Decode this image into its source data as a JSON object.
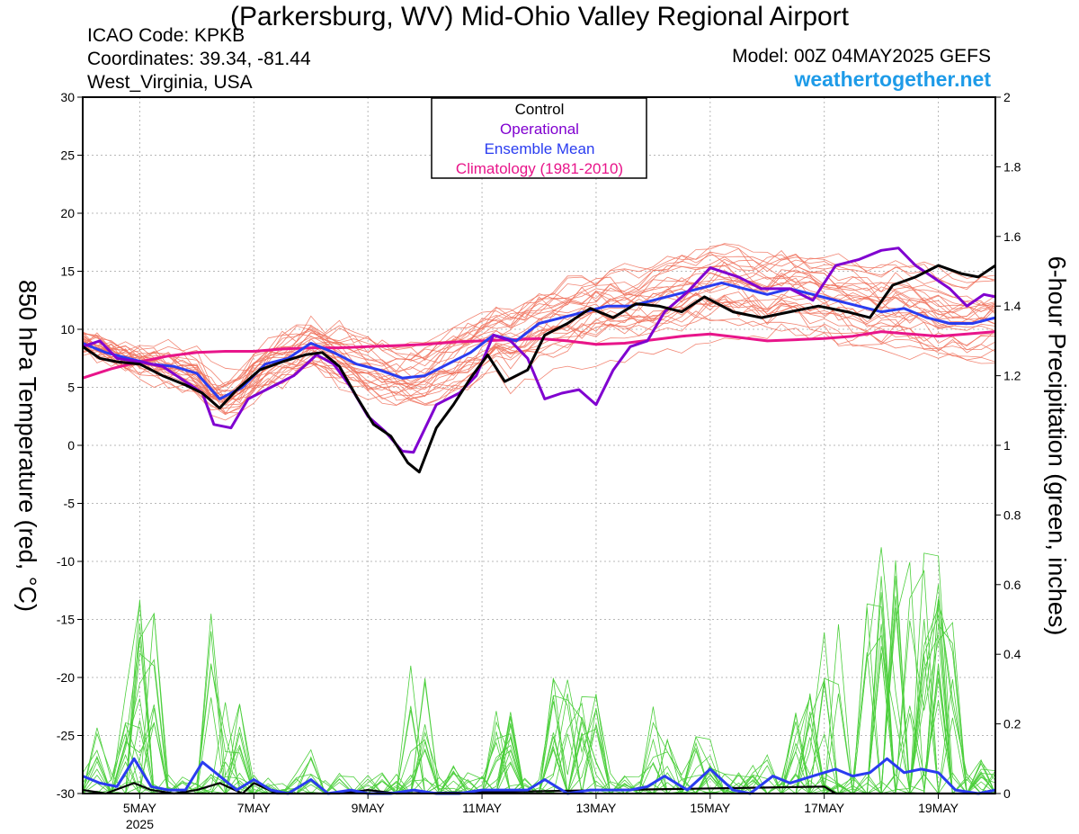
{
  "header": {
    "title": "(Parkersburg, WV) Mid-Ohio Valley Regional Airport",
    "icao": "ICAO Code: KPKB",
    "coordinates": "Coordinates: 39.34, -81.44",
    "region": "West_Virginia, USA",
    "model": "Model: 00Z 04MAY2025 GEFS",
    "site": "weathertogether.net"
  },
  "colors": {
    "control": "#000000",
    "operational": "#8000d0",
    "ensemble_mean": "#2a3cf0",
    "climatology": "#e8158a",
    "members_temp": "#f0705a",
    "members_precip": "#4ccf3c",
    "site": "#1e9be8"
  },
  "chart_data": {
    "type": "line",
    "ylabel_left": "850 hPa Temperature (red, °C)",
    "ylabel_right": "6-hour Precipitation (green, inches)",
    "ylim_left": [
      -30,
      30
    ],
    "ylim_right": [
      0,
      2
    ],
    "yticks_left": [
      "30",
      "25",
      "20",
      "15",
      "10",
      "5",
      "0",
      "-5",
      "-10",
      "-15",
      "-20",
      "-25",
      "-30"
    ],
    "yticks_right": [
      "2",
      "1.8",
      "1.6",
      "1.4",
      "1.2",
      "1",
      "0.8",
      "0.6",
      "0.4",
      "0.2",
      "0"
    ],
    "xlim_days": [
      4.0,
      20.0
    ],
    "xticks": [
      {
        "day": 5,
        "label": "5MAY",
        "sublabel": "2025"
      },
      {
        "day": 7,
        "label": "7MAY",
        "sublabel": ""
      },
      {
        "day": 9,
        "label": "9MAY",
        "sublabel": ""
      },
      {
        "day": 11,
        "label": "11MAY",
        "sublabel": ""
      },
      {
        "day": 13,
        "label": "13MAY",
        "sublabel": ""
      },
      {
        "day": 15,
        "label": "15MAY",
        "sublabel": ""
      },
      {
        "day": 17,
        "label": "17MAY",
        "sublabel": ""
      },
      {
        "day": 19,
        "label": "19MAY",
        "sublabel": ""
      }
    ],
    "legend": {
      "placement": "top-center",
      "entries": [
        {
          "name": "Control",
          "color": "#000000"
        },
        {
          "name": "Operational",
          "color": "#8000d0"
        },
        {
          "name": "Ensemble Mean",
          "color": "#2a3cf0"
        },
        {
          "name": "Climatology (1981-2010)",
          "color": "#e8158a"
        }
      ]
    },
    "grid": true,
    "temp_series": {
      "control": [
        [
          4,
          8.5
        ],
        [
          4.3,
          7.5
        ],
        [
          4.6,
          7.2
        ],
        [
          5,
          7.0
        ],
        [
          5.4,
          6.0
        ],
        [
          5.8,
          5.2
        ],
        [
          6.1,
          4.5
        ],
        [
          6.4,
          3.2
        ],
        [
          6.7,
          4.8
        ],
        [
          7.1,
          6.5
        ],
        [
          7.5,
          7.2
        ],
        [
          7.9,
          7.8
        ],
        [
          8.2,
          8.0
        ],
        [
          8.5,
          6.8
        ],
        [
          8.8,
          4.2
        ],
        [
          9.1,
          1.8
        ],
        [
          9.4,
          0.8
        ],
        [
          9.7,
          -1.5
        ],
        [
          9.9,
          -2.3
        ],
        [
          10.2,
          1.5
        ],
        [
          10.5,
          3.5
        ],
        [
          10.8,
          5.8
        ],
        [
          11.1,
          7.8
        ],
        [
          11.4,
          5.5
        ],
        [
          11.8,
          6.5
        ],
        [
          12.1,
          9.5
        ],
        [
          12.5,
          10.5
        ],
        [
          12.9,
          11.8
        ],
        [
          13.3,
          11.0
        ],
        [
          13.7,
          12.2
        ],
        [
          14.1,
          12.0
        ],
        [
          14.5,
          11.5
        ],
        [
          14.9,
          12.8
        ],
        [
          15.4,
          11.5
        ],
        [
          15.9,
          11.0
        ],
        [
          16.4,
          11.5
        ],
        [
          16.9,
          12.0
        ],
        [
          17.4,
          11.5
        ],
        [
          17.8,
          11.0
        ],
        [
          18.2,
          13.8
        ],
        [
          18.6,
          14.5
        ],
        [
          19.0,
          15.5
        ],
        [
          19.4,
          14.8
        ],
        [
          19.7,
          14.5
        ],
        [
          20.0,
          15.5
        ]
      ],
      "operational": [
        [
          4,
          8.5
        ],
        [
          4.3,
          9.0
        ],
        [
          4.6,
          7.5
        ],
        [
          5,
          7.2
        ],
        [
          5.4,
          6.8
        ],
        [
          5.8,
          5.5
        ],
        [
          6.1,
          4.5
        ],
        [
          6.3,
          1.8
        ],
        [
          6.6,
          1.5
        ],
        [
          6.9,
          4.0
        ],
        [
          7.3,
          5.0
        ],
        [
          7.7,
          6.0
        ],
        [
          8.1,
          7.8
        ],
        [
          8.4,
          7.0
        ],
        [
          8.7,
          5.0
        ],
        [
          9.0,
          2.5
        ],
        [
          9.3,
          1.2
        ],
        [
          9.6,
          -0.5
        ],
        [
          9.8,
          -0.6
        ],
        [
          10.2,
          3.5
        ],
        [
          10.6,
          4.5
        ],
        [
          10.9,
          6.0
        ],
        [
          11.2,
          9.5
        ],
        [
          11.5,
          9.0
        ],
        [
          11.8,
          7.5
        ],
        [
          12.1,
          4.0
        ],
        [
          12.4,
          4.5
        ],
        [
          12.7,
          4.8
        ],
        [
          13.0,
          3.5
        ],
        [
          13.3,
          6.5
        ],
        [
          13.6,
          8.5
        ],
        [
          13.9,
          9.0
        ],
        [
          14.2,
          11.5
        ],
        [
          14.6,
          13.2
        ],
        [
          15.0,
          15.3
        ],
        [
          15.5,
          14.5
        ],
        [
          15.9,
          13.5
        ],
        [
          16.4,
          13.5
        ],
        [
          16.8,
          12.5
        ],
        [
          17.2,
          15.5
        ],
        [
          17.6,
          16.0
        ],
        [
          18.0,
          16.8
        ],
        [
          18.3,
          17.0
        ],
        [
          18.6,
          15.5
        ],
        [
          18.9,
          14.5
        ],
        [
          19.2,
          13.5
        ],
        [
          19.5,
          12.0
        ],
        [
          19.8,
          13.0
        ],
        [
          20.0,
          12.8
        ]
      ],
      "ensemble_mean": [
        [
          4,
          8.8
        ],
        [
          4.4,
          8.0
        ],
        [
          4.8,
          7.5
        ],
        [
          5.2,
          7.0
        ],
        [
          5.6,
          6.8
        ],
        [
          6.0,
          6.2
        ],
        [
          6.4,
          4.0
        ],
        [
          6.8,
          5.0
        ],
        [
          7.2,
          7.0
        ],
        [
          7.6,
          7.5
        ],
        [
          8.0,
          8.8
        ],
        [
          8.4,
          8.0
        ],
        [
          8.8,
          7.0
        ],
        [
          9.2,
          6.5
        ],
        [
          9.6,
          5.8
        ],
        [
          10.0,
          6.0
        ],
        [
          10.4,
          7.0
        ],
        [
          10.8,
          8.0
        ],
        [
          11.2,
          9.5
        ],
        [
          11.6,
          9.0
        ],
        [
          12.0,
          10.5
        ],
        [
          12.4,
          11.0
        ],
        [
          12.8,
          11.5
        ],
        [
          13.2,
          12.0
        ],
        [
          13.6,
          12.0
        ],
        [
          14.0,
          12.5
        ],
        [
          14.4,
          13.0
        ],
        [
          14.8,
          13.5
        ],
        [
          15.2,
          14.0
        ],
        [
          15.6,
          13.5
        ],
        [
          16.0,
          13.0
        ],
        [
          16.4,
          13.5
        ],
        [
          16.8,
          13.0
        ],
        [
          17.2,
          12.5
        ],
        [
          17.6,
          12.0
        ],
        [
          18.0,
          11.5
        ],
        [
          18.4,
          11.8
        ],
        [
          18.8,
          11.0
        ],
        [
          19.2,
          10.5
        ],
        [
          19.6,
          10.5
        ],
        [
          20.0,
          11.0
        ]
      ],
      "climatology": [
        [
          4,
          5.8
        ],
        [
          4.5,
          6.6
        ],
        [
          5,
          7.2
        ],
        [
          5.5,
          7.7
        ],
        [
          6,
          8.0
        ],
        [
          6.5,
          8.1
        ],
        [
          7,
          8.1
        ],
        [
          7.5,
          8.3
        ],
        [
          8,
          8.4
        ],
        [
          8.5,
          8.4
        ],
        [
          9,
          8.5
        ],
        [
          9.5,
          8.6
        ],
        [
          10,
          8.7
        ],
        [
          10.5,
          8.9
        ],
        [
          11,
          9.0
        ],
        [
          11.5,
          9.1
        ],
        [
          12,
          9.2
        ],
        [
          12.5,
          9.0
        ],
        [
          13,
          8.7
        ],
        [
          13.5,
          8.8
        ],
        [
          14,
          9.1
        ],
        [
          14.5,
          9.4
        ],
        [
          15,
          9.6
        ],
        [
          15.5,
          9.3
        ],
        [
          16,
          9.0
        ],
        [
          16.5,
          9.1
        ],
        [
          17,
          9.2
        ],
        [
          17.5,
          9.4
        ],
        [
          18,
          9.8
        ],
        [
          18.5,
          9.6
        ],
        [
          19,
          9.4
        ],
        [
          19.5,
          9.6
        ],
        [
          20,
          9.8
        ]
      ]
    },
    "precip_series": {
      "ensemble_mean": [
        [
          4,
          0.05
        ],
        [
          4.3,
          0.03
        ],
        [
          4.6,
          0.02
        ],
        [
          4.9,
          0.1
        ],
        [
          5.2,
          0.02
        ],
        [
          5.5,
          0.01
        ],
        [
          5.8,
          0.01
        ],
        [
          6.1,
          0.09
        ],
        [
          6.4,
          0.05
        ],
        [
          6.7,
          0.01
        ],
        [
          7.0,
          0.04
        ],
        [
          7.3,
          0.01
        ],
        [
          7.6,
          0.0
        ],
        [
          8.0,
          0.04
        ],
        [
          8.3,
          0.0
        ],
        [
          8.7,
          0.01
        ],
        [
          9.0,
          0.0
        ],
        [
          9.4,
          0.0
        ],
        [
          9.8,
          0.01
        ],
        [
          10.2,
          0.0
        ],
        [
          10.6,
          0.0
        ],
        [
          11.0,
          0.01
        ],
        [
          11.4,
          0.01
        ],
        [
          11.8,
          0.01
        ],
        [
          12.1,
          0.04
        ],
        [
          12.5,
          0.0
        ],
        [
          12.9,
          0.01
        ],
        [
          13.2,
          0.01
        ],
        [
          13.6,
          0.01
        ],
        [
          13.9,
          0.02
        ],
        [
          14.2,
          0.05
        ],
        [
          14.6,
          0.01
        ],
        [
          15.0,
          0.07
        ],
        [
          15.4,
          0.01
        ],
        [
          15.7,
          0.0
        ],
        [
          16.1,
          0.05
        ],
        [
          16.4,
          0.03
        ],
        [
          16.8,
          0.05
        ],
        [
          17.2,
          0.07
        ],
        [
          17.5,
          0.05
        ],
        [
          17.8,
          0.06
        ],
        [
          18.1,
          0.1
        ],
        [
          18.4,
          0.06
        ],
        [
          18.7,
          0.07
        ],
        [
          19.0,
          0.06
        ],
        [
          19.3,
          0.01
        ],
        [
          19.7,
          0.0
        ],
        [
          20.0,
          0.01
        ]
      ],
      "control": [
        [
          4,
          0.01
        ],
        [
          4.4,
          0.0
        ],
        [
          4.9,
          0.03
        ],
        [
          5.2,
          0.01
        ],
        [
          5.6,
          0.0
        ],
        [
          6.0,
          0.01
        ],
        [
          6.4,
          0.03
        ],
        [
          6.8,
          0.0
        ],
        [
          7.0,
          0.03
        ],
        [
          7.4,
          0.0
        ],
        [
          8.0,
          0.0
        ],
        [
          8.5,
          0.0
        ],
        [
          9.0,
          0.01
        ],
        [
          9.5,
          0.0
        ],
        [
          17.0,
          0.02
        ],
        [
          17.2,
          0.0
        ],
        [
          20.0,
          0.0
        ]
      ],
      "member_peaks": [
        [
          4.25,
          0.21
        ],
        [
          4.9,
          0.29
        ],
        [
          5.15,
          0.56
        ],
        [
          6.2,
          0.56
        ],
        [
          6.6,
          0.28
        ],
        [
          8.0,
          0.17
        ],
        [
          9.9,
          0.38
        ],
        [
          10.5,
          0.08
        ],
        [
          11.3,
          0.26
        ],
        [
          12.3,
          0.35
        ],
        [
          12.9,
          0.29
        ],
        [
          14.2,
          0.25
        ],
        [
          14.9,
          0.17
        ],
        [
          15.8,
          0.12
        ],
        [
          16.6,
          0.29
        ],
        [
          17.1,
          0.55
        ],
        [
          17.8,
          0.72
        ],
        [
          18.4,
          0.68
        ],
        [
          18.9,
          0.73
        ],
        [
          19.2,
          0.52
        ],
        [
          19.9,
          0.1
        ]
      ]
    }
  }
}
